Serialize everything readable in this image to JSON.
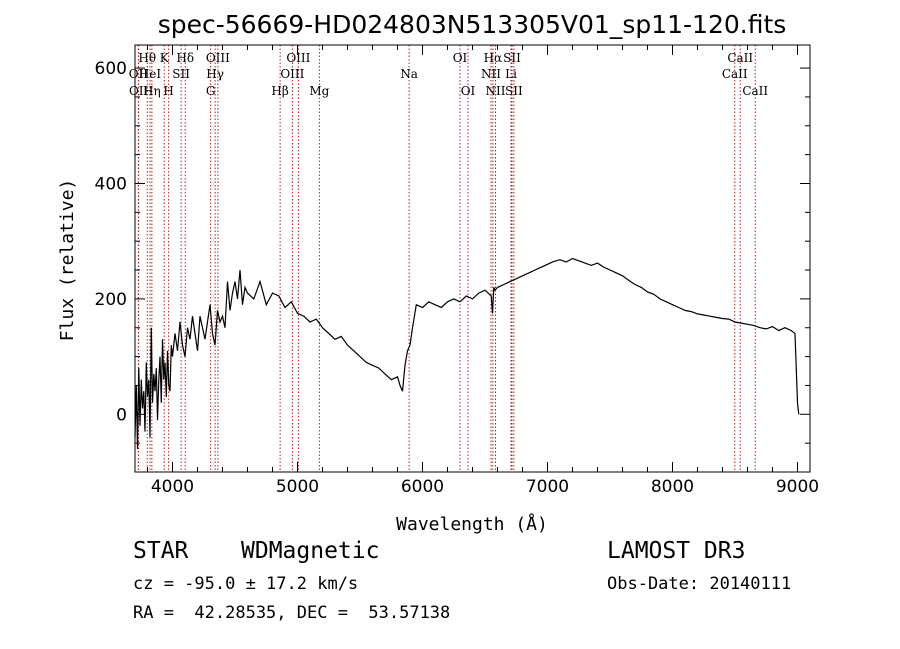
{
  "chart_data": {
    "type": "line",
    "title": "spec-56669-HD024803N513305V01_sp11-120.fits",
    "xlabel": "Wavelength (Å)",
    "ylabel": "Flux (relative)",
    "xlim": [
      3700,
      9100
    ],
    "ylim": [
      -100,
      640
    ],
    "xticks": [
      4000,
      5000,
      6000,
      7000,
      8000,
      9000
    ],
    "yticks": [
      0,
      200,
      400,
      600
    ],
    "series": [
      {
        "name": "flux",
        "x": [
          3700,
          3710,
          3720,
          3730,
          3740,
          3750,
          3760,
          3770,
          3780,
          3790,
          3800,
          3810,
          3820,
          3830,
          3840,
          3850,
          3860,
          3870,
          3880,
          3890,
          3900,
          3910,
          3920,
          3930,
          3940,
          3950,
          3960,
          3970,
          3980,
          3990,
          4000,
          4020,
          4040,
          4060,
          4080,
          4100,
          4120,
          4140,
          4160,
          4180,
          4200,
          4220,
          4240,
          4260,
          4280,
          4300,
          4320,
          4340,
          4360,
          4380,
          4400,
          4420,
          4440,
          4460,
          4480,
          4500,
          4520,
          4540,
          4560,
          4580,
          4600,
          4650,
          4700,
          4750,
          4800,
          4850,
          4900,
          4950,
          5000,
          5050,
          5100,
          5150,
          5200,
          5250,
          5300,
          5350,
          5400,
          5450,
          5500,
          5550,
          5600,
          5650,
          5700,
          5750,
          5800,
          5820,
          5840,
          5860,
          5880,
          5900,
          5920,
          5950,
          6000,
          6050,
          6100,
          6150,
          6200,
          6250,
          6300,
          6350,
          6400,
          6450,
          6500,
          6550,
          6560,
          6570,
          6580,
          6600,
          6650,
          6700,
          6750,
          6800,
          6850,
          6900,
          6950,
          7000,
          7050,
          7100,
          7150,
          7200,
          7250,
          7300,
          7350,
          7400,
          7450,
          7500,
          7550,
          7600,
          7650,
          7700,
          7750,
          7800,
          7850,
          7900,
          7950,
          8000,
          8050,
          8100,
          8150,
          8200,
          8250,
          8300,
          8350,
          8400,
          8450,
          8500,
          8550,
          8600,
          8650,
          8700,
          8750,
          8800,
          8850,
          8900,
          8950,
          8980,
          9000,
          9005,
          9010
        ],
        "y": [
          -40,
          50,
          -60,
          80,
          -20,
          60,
          10,
          40,
          -30,
          90,
          30,
          60,
          -40,
          150,
          20,
          70,
          40,
          80,
          -10,
          60,
          100,
          20,
          130,
          60,
          90,
          30,
          110,
          50,
          40,
          120,
          100,
          140,
          110,
          160,
          120,
          100,
          150,
          130,
          170,
          140,
          110,
          170,
          150,
          130,
          160,
          190,
          140,
          120,
          180,
          160,
          170,
          150,
          230,
          180,
          210,
          230,
          200,
          250,
          190,
          220,
          210,
          200,
          230,
          190,
          210,
          205,
          185,
          195,
          175,
          170,
          160,
          165,
          150,
          140,
          130,
          135,
          120,
          110,
          100,
          90,
          85,
          80,
          70,
          60,
          65,
          50,
          40,
          85,
          110,
          120,
          150,
          190,
          185,
          195,
          190,
          185,
          195,
          200,
          195,
          205,
          200,
          210,
          215,
          205,
          175,
          220,
          215,
          220,
          225,
          230,
          235,
          240,
          245,
          250,
          255,
          260,
          265,
          268,
          264,
          270,
          266,
          262,
          258,
          262,
          255,
          250,
          245,
          240,
          232,
          225,
          220,
          212,
          208,
          200,
          195,
          190,
          185,
          180,
          178,
          174,
          172,
          170,
          168,
          166,
          165,
          160,
          158,
          156,
          154,
          150,
          148,
          152,
          145,
          150,
          145,
          140,
          20,
          10,
          0
        ]
      }
    ],
    "spectral_lines": [
      {
        "name": "Hθ",
        "wl": 3798,
        "row": 1
      },
      {
        "name": "OII",
        "wl": 3727,
        "row": 2
      },
      {
        "name": "HeI",
        "wl": 3820,
        "row": 2
      },
      {
        "name": "OII",
        "wl": 3729,
        "row": 3
      },
      {
        "name": "Hη",
        "wl": 3835,
        "row": 3
      },
      {
        "name": "K",
        "wl": 3934,
        "row": 1
      },
      {
        "name": "SII",
        "wl": 4069,
        "row": 2
      },
      {
        "name": "H",
        "wl": 3969,
        "row": 3
      },
      {
        "name": "Hδ",
        "wl": 4102,
        "row": 1
      },
      {
        "name": "OIII",
        "wl": 4363,
        "row": 1
      },
      {
        "name": "Hγ",
        "wl": 4341,
        "row": 2
      },
      {
        "name": "G",
        "wl": 4305,
        "row": 3
      },
      {
        "name": "OIII",
        "wl": 5007,
        "row": 1
      },
      {
        "name": "OIII",
        "wl": 4959,
        "row": 2
      },
      {
        "name": "Hβ",
        "wl": 4861,
        "row": 3
      },
      {
        "name": "Mg",
        "wl": 5175,
        "row": 3
      },
      {
        "name": "Na",
        "wl": 5893,
        "row": 2
      },
      {
        "name": "OI",
        "wl": 6300,
        "row": 1
      },
      {
        "name": "OI",
        "wl": 6364,
        "row": 3
      },
      {
        "name": "Hα",
        "wl": 6563,
        "row": 1
      },
      {
        "name": "SII",
        "wl": 6716,
        "row": 1
      },
      {
        "name": "NII",
        "wl": 6548,
        "row": 2
      },
      {
        "name": "Li",
        "wl": 6708,
        "row": 2
      },
      {
        "name": "NII",
        "wl": 6584,
        "row": 3
      },
      {
        "name": "SII",
        "wl": 6731,
        "row": 3
      },
      {
        "name": "CaII",
        "wl": 8542,
        "row": 1
      },
      {
        "name": "CaII",
        "wl": 8498,
        "row": 2
      },
      {
        "name": "CaII",
        "wl": 8662,
        "row": 3
      }
    ],
    "grid": false,
    "legend": "none",
    "line_marker_color": "#b22222",
    "line_color": "#000000"
  },
  "info": {
    "object_class": "STAR",
    "subclass": "WDMagnetic",
    "survey": "LAMOST DR3",
    "redshift": "cz = -95.0 ± 17.2 km/s",
    "obs_date": "Obs-Date: 20140111",
    "coords": "RA =  42.28535, DEC =  53.57138"
  }
}
